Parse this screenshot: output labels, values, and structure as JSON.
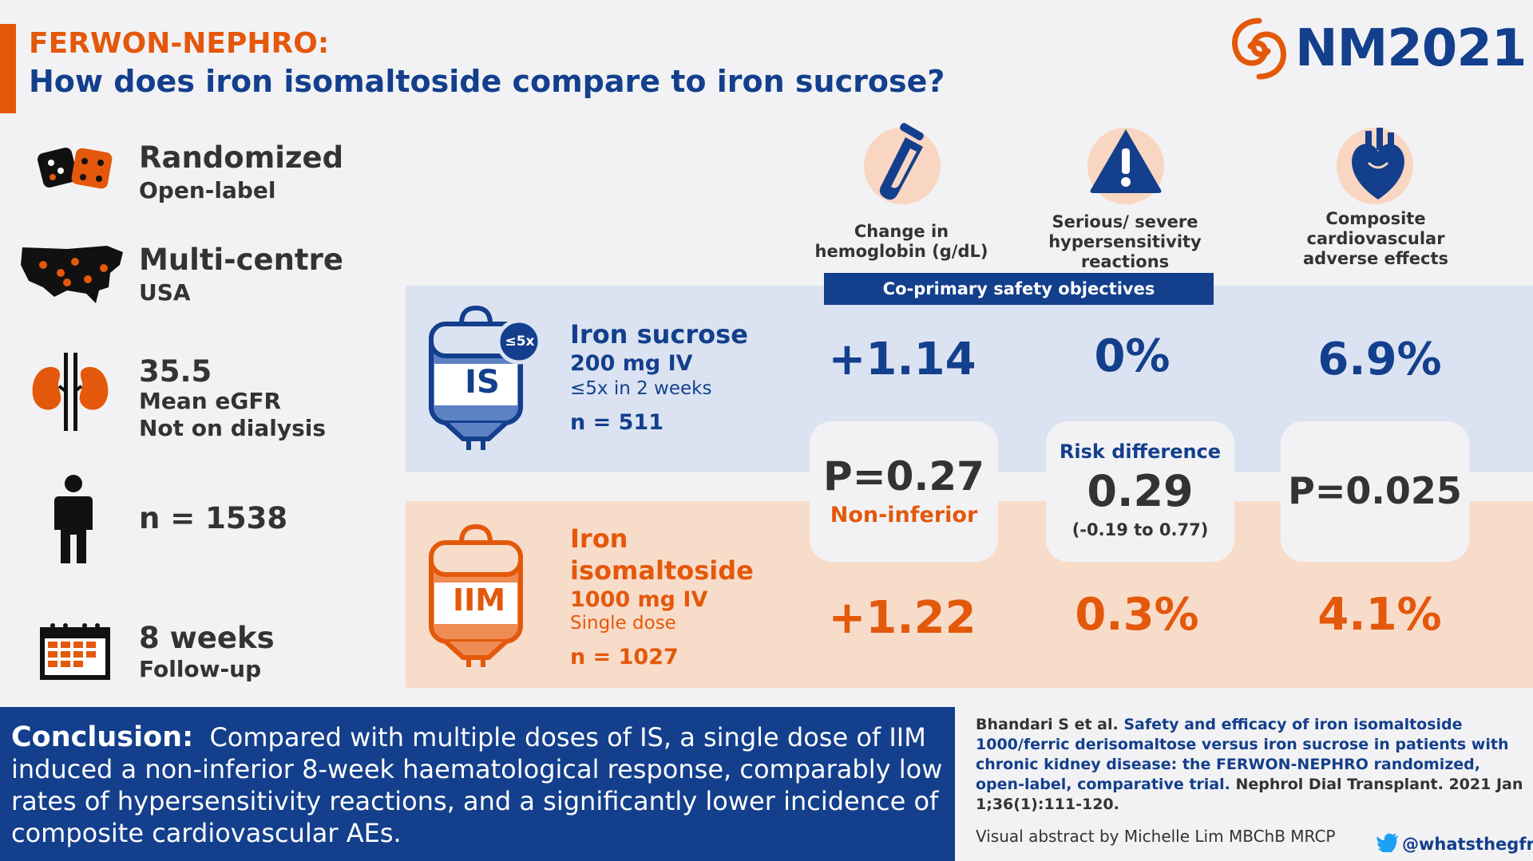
{
  "header": {
    "title_line1": "FERWON-NEPHRO:",
    "title_line2": "How does iron isomaltoside compare to iron sucrose?",
    "logo_text": "NM2021"
  },
  "features": [
    {
      "title": "Randomized",
      "sub1": "Open-label",
      "sub2": "",
      "icon": "dice-icon"
    },
    {
      "title": "Multi-centre",
      "sub1": "USA",
      "sub2": "",
      "icon": "usa-map-icon"
    },
    {
      "title": "35.5",
      "sub1": "Mean eGFR",
      "sub2": "Not on dialysis",
      "icon": "kidney-icon"
    },
    {
      "title": "",
      "sub1": "n = 1538",
      "sub2": "",
      "icon": "person-icon"
    },
    {
      "title": "8 weeks",
      "sub1": "Follow-up",
      "sub2": "",
      "icon": "calendar-icon"
    }
  ],
  "columns": {
    "hb": {
      "line1": "Change in",
      "line2": "hemoglobin (g/dL)"
    },
    "hyp": {
      "line1": "Serious/ severe",
      "line2": "hypersensitivity",
      "line3": "reactions"
    },
    "cv": {
      "line1": "Composite",
      "line2": "cardiovascular",
      "line3": "adverse effects"
    },
    "objective": "Co-primary safety objectives"
  },
  "is_arm": {
    "badge": "≤5x",
    "bag_label": "IS",
    "name": "Iron sucrose",
    "dose": "200 mg IV",
    "schedule": "≤5x in 2 weeks",
    "n": "n = 511",
    "hb": "+1.14",
    "hyp": "0%",
    "cv": "6.9%"
  },
  "iim_arm": {
    "bag_label": "IIM",
    "name_line1": "Iron",
    "name_line2": "isomaltoside",
    "dose": "1000 mg IV",
    "schedule": "Single dose",
    "n": "n = 1027",
    "hb": "+1.22",
    "hyp": "0.3%",
    "cv": "4.1%"
  },
  "stats": {
    "hb_p": "P=0.27",
    "hb_note": "Non-inferior",
    "hyp_label": "Risk difference",
    "hyp_value": "0.29",
    "hyp_ci": "(-0.19 to 0.77)",
    "cv_p": "P=0.025"
  },
  "conclusion": {
    "label": "Conclusion:",
    "text": "Compared with multiple doses of IS, a single dose of IIM induced a non-inferior 8-week haematological response, comparably low rates of hypersensitivity reactions, and a significantly lower incidence of composite cardiovascular AEs."
  },
  "reference": {
    "authors": "Bhandari S et al.",
    "title": "Safety and efficacy of iron isomaltoside 1000/ferric derisomaltose versus iron sucrose in patients with chronic kidney disease: the FERWON-NEPHRO randomized, open-label, comparative trial.",
    "journal": "Nephrol Dial Transplant. 2021 Jan 1;36(1):111-120.",
    "credit": "Visual abstract by Michelle Lim MBChB MRCP",
    "handle": "@whatsthegfr"
  },
  "colors": {
    "navy": "#133f8c",
    "orange": "#e4580b",
    "is_band": "#dbe3f2",
    "iim_band": "#f8dcca"
  }
}
